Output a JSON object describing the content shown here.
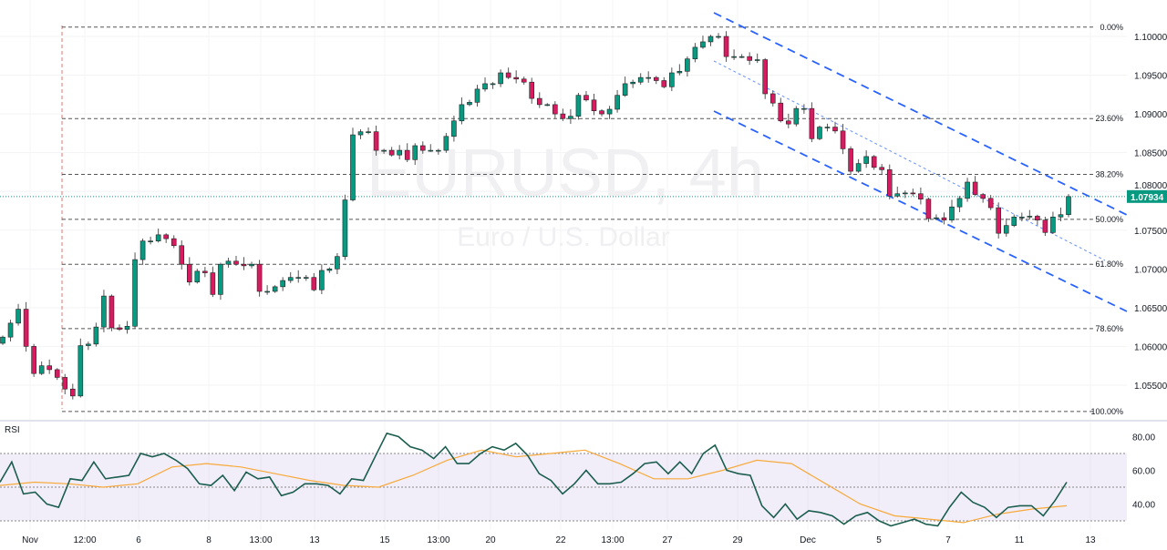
{
  "chart_data": {
    "type": "candlestick",
    "symbol_watermark": "EURUSD, 4h",
    "description_watermark": "Euro / U.S. Dollar",
    "close": [
      1.0612,
      1.063,
      1.0648,
      1.06,
      1.0565,
      1.0575,
      1.057,
      1.056,
      1.0545,
      1.0536,
      1.0601,
      1.0603,
      1.0625,
      1.0665,
      1.0624,
      1.0622,
      1.0626,
      1.0712,
      1.0736,
      1.0736,
      1.0744,
      1.0739,
      1.073,
      1.0706,
      1.0683,
      1.0697,
      1.0695,
      1.0667,
      1.0706,
      1.071,
      1.0706,
      1.0704,
      1.0706,
      1.0671,
      1.0671,
      1.0677,
      1.0685,
      1.0689,
      1.0689,
      1.0689,
      1.0673,
      1.0698,
      1.07,
      1.0716,
      1.0789,
      1.0873,
      1.0877,
      1.0877,
      1.0853,
      1.0853,
      1.0847,
      1.0853,
      1.0841,
      1.0859,
      1.0853,
      1.0853,
      1.0853,
      1.0871,
      1.0891,
      1.0912,
      1.0915,
      1.0932,
      1.0939,
      1.0939,
      1.0953,
      1.0947,
      1.0945,
      1.0941,
      1.092,
      1.0912,
      1.0912,
      1.09,
      1.0894,
      1.0897,
      1.0924,
      1.0918,
      1.0904,
      1.09,
      1.0906,
      1.0924,
      1.0939,
      1.0941,
      1.0947,
      1.0947,
      1.0943,
      1.0935,
      1.0953,
      1.0955,
      1.0971,
      1.0986,
      1.0993,
      1.1,
      1.1,
      1.0974,
      1.0974,
      1.0974,
      1.0969,
      1.097,
      1.0926,
      1.0914,
      1.0891,
      1.0887,
      1.0907,
      1.0907,
      1.0868,
      1.0883,
      1.0883,
      1.0878,
      1.0855,
      1.0826,
      1.0836,
      1.0845,
      1.0831,
      1.0828,
      1.0794,
      1.0797,
      1.0798,
      1.0797,
      1.079,
      1.0765,
      1.0766,
      1.0763,
      1.078,
      1.0791,
      1.0812,
      1.0796,
      1.0791,
      1.0779,
      1.0746,
      1.0756,
      1.0767,
      1.0767,
      1.0768,
      1.0763,
      1.0747,
      1.0767,
      1.077,
      1.07934
    ],
    "last_price": "1.07934",
    "y_ticks": [
      "1.10000",
      "1.09500",
      "1.09000",
      "1.08500",
      "1.08000",
      "1.07500",
      "1.07000",
      "1.06500",
      "1.06000",
      "1.05500"
    ],
    "ylim": [
      1.0515,
      1.103
    ],
    "x_ticks": [
      "Nov",
      "12:00",
      "6",
      "8",
      "13:00",
      "13",
      "15",
      "13:00",
      "20",
      "22",
      "13:00",
      "27",
      "29",
      "Dec",
      "5",
      "7",
      "11",
      "13"
    ],
    "fibonacci": {
      "levels": [
        {
          "label": "0.00%",
          "price": 1.1012
        },
        {
          "label": "23.60%",
          "price": 1.0894
        },
        {
          "label": "38.20%",
          "price": 1.0822
        },
        {
          "label": "50.00%",
          "price": 1.0764
        },
        {
          "label": "61.80%",
          "price": 1.0706
        },
        {
          "label": "78.60%",
          "price": 1.0623
        },
        {
          "label": "100.00%",
          "price": 1.0516
        }
      ]
    },
    "colors": {
      "up": "#089981",
      "down": "#d81b60",
      "last_price": "#089981",
      "channel": "#2962ff",
      "rsi": "#1b5e4f",
      "rsi_ma": "#f7a93a",
      "rsi_band": "#7e57c2"
    },
    "rsi": {
      "label": "RSI",
      "y_ticks": [
        "80.00",
        "60.00",
        "40.00"
      ],
      "ylim": [
        22,
        90
      ],
      "bands": [
        70,
        50,
        30
      ],
      "values": [
        53,
        65,
        46,
        47,
        40,
        38,
        55,
        54,
        65,
        55,
        56,
        57,
        70,
        68,
        70,
        66,
        61,
        52,
        51,
        57,
        48,
        59,
        55,
        56,
        45,
        47,
        52,
        52,
        51,
        46,
        55,
        54,
        68,
        82,
        80,
        74,
        72,
        67,
        74,
        64,
        64,
        70,
        74,
        72,
        76,
        69,
        58,
        54,
        46,
        52,
        60,
        52,
        52,
        53,
        58,
        64,
        65,
        58,
        65,
        58,
        70,
        75,
        60,
        58,
        57,
        39,
        32,
        40,
        31,
        36,
        35,
        33,
        28,
        33,
        35,
        30,
        27,
        29,
        31,
        28,
        27,
        38,
        47,
        41,
        38,
        32,
        38,
        39,
        39,
        33,
        42,
        53
      ],
      "ma_values": [
        51,
        53,
        52,
        50,
        52,
        62,
        64,
        62,
        58,
        54,
        51,
        50,
        57,
        66,
        72,
        68,
        70,
        72,
        64,
        55,
        55,
        60,
        66,
        64,
        52,
        40,
        33,
        31,
        29,
        34,
        37,
        39
      ]
    }
  }
}
